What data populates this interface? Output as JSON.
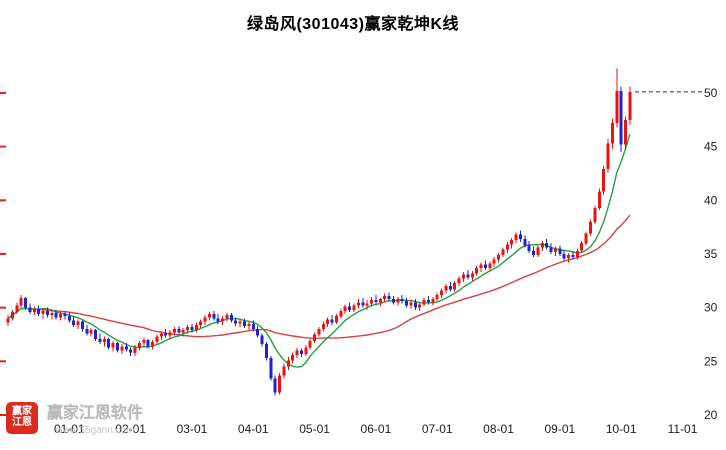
{
  "title": "绿岛风(301043)赢家乾坤K线",
  "watermark": {
    "logo_line1": "赢家",
    "logo_line2": "江恩",
    "name": "赢家江恩软件",
    "url": "www.55gann.com"
  },
  "colors": {
    "up": "#ee1111",
    "down": "#2222cc",
    "ma_fast": "#22a045",
    "ma_slow": "#d84040",
    "dashed": "#333333",
    "axis_text": "#222222",
    "left_tick": "#dd2222",
    "logo_bg": "#d92b1f"
  },
  "chart_data": {
    "type": "candlestick",
    "title": "绿岛风(301043)赢家乾坤K线",
    "legend": [],
    "grid": false,
    "y_axis": {
      "position": "right",
      "min": 20,
      "max": 54,
      "ticks": [
        50,
        45,
        40,
        35,
        30,
        25,
        20
      ]
    },
    "x_axis": {
      "labels": [
        "01-01",
        "02-01",
        "03-01",
        "04-01",
        "05-01",
        "06-01",
        "07-01",
        "08-01",
        "09-01",
        "10-01",
        "11-01"
      ],
      "first_label_slot": 14,
      "slot_step": 14,
      "total_slots": 158
    },
    "ma_fast_window": 8,
    "ma_slow_window": 30,
    "dashed_line_price": 50.1,
    "candles": [
      [
        28.6,
        29.3,
        28.3,
        29.0
      ],
      [
        29.0,
        29.8,
        28.8,
        29.6
      ],
      [
        29.6,
        30.5,
        29.4,
        30.2
      ],
      [
        30.2,
        31.2,
        30.0,
        30.9
      ],
      [
        30.9,
        31.0,
        29.8,
        30.0
      ],
      [
        30.0,
        30.4,
        29.4,
        29.6
      ],
      [
        29.6,
        30.1,
        29.3,
        29.9
      ],
      [
        29.9,
        30.2,
        29.2,
        29.4
      ],
      [
        29.4,
        29.9,
        29.0,
        29.7
      ],
      [
        29.7,
        30.0,
        29.1,
        29.3
      ],
      [
        29.3,
        29.7,
        28.9,
        29.5
      ],
      [
        29.5,
        29.8,
        28.9,
        29.1
      ],
      [
        29.1,
        29.6,
        28.8,
        29.4
      ],
      [
        29.4,
        29.7,
        28.9,
        29.2
      ],
      [
        29.2,
        29.6,
        28.6,
        28.8
      ],
      [
        28.8,
        29.2,
        28.2,
        28.4
      ],
      [
        28.4,
        28.9,
        28.0,
        28.7
      ],
      [
        28.7,
        28.8,
        27.8,
        28.0
      ],
      [
        28.0,
        28.4,
        27.4,
        27.6
      ],
      [
        27.6,
        28.1,
        27.3,
        27.9
      ],
      [
        27.9,
        28.0,
        26.9,
        27.1
      ],
      [
        27.1,
        27.6,
        26.6,
        26.8
      ],
      [
        26.8,
        27.3,
        26.4,
        27.1
      ],
      [
        27.1,
        27.2,
        26.1,
        26.3
      ],
      [
        26.3,
        26.9,
        25.9,
        26.7
      ],
      [
        26.7,
        26.8,
        25.8,
        26.0
      ],
      [
        26.0,
        26.6,
        25.7,
        26.4
      ],
      [
        26.4,
        26.7,
        25.9,
        26.1
      ],
      [
        26.1,
        26.3,
        25.5,
        25.8
      ],
      [
        25.8,
        26.5,
        25.5,
        26.3
      ],
      [
        26.3,
        26.9,
        26.0,
        26.7
      ],
      [
        26.7,
        27.2,
        26.4,
        27.0
      ],
      [
        27.0,
        27.1,
        26.2,
        26.4
      ],
      [
        26.4,
        27.0,
        26.1,
        26.8
      ],
      [
        26.8,
        27.5,
        26.6,
        27.3
      ],
      [
        27.3,
        27.8,
        27.0,
        27.6
      ],
      [
        27.6,
        28.0,
        27.2,
        27.4
      ],
      [
        27.4,
        27.9,
        27.1,
        27.7
      ],
      [
        27.7,
        28.2,
        27.4,
        28.0
      ],
      [
        28.0,
        28.3,
        27.5,
        27.7
      ],
      [
        27.7,
        28.1,
        27.3,
        27.9
      ],
      [
        27.9,
        28.4,
        27.6,
        28.2
      ],
      [
        28.2,
        28.5,
        27.7,
        27.9
      ],
      [
        27.9,
        28.6,
        27.7,
        28.4
      ],
      [
        28.4,
        28.9,
        28.1,
        28.7
      ],
      [
        28.7,
        29.3,
        28.4,
        29.1
      ],
      [
        29.1,
        29.6,
        28.8,
        29.4
      ],
      [
        29.4,
        29.7,
        28.8,
        29.0
      ],
      [
        29.0,
        29.4,
        28.5,
        28.7
      ],
      [
        28.7,
        29.2,
        28.4,
        29.0
      ],
      [
        29.0,
        29.5,
        28.7,
        29.3
      ],
      [
        29.3,
        29.5,
        28.6,
        28.8
      ],
      [
        28.8,
        29.1,
        28.3,
        28.5
      ],
      [
        28.5,
        28.9,
        28.2,
        28.7
      ],
      [
        28.7,
        29.0,
        28.1,
        28.3
      ],
      [
        28.3,
        28.7,
        27.9,
        28.5
      ],
      [
        28.5,
        28.8,
        27.8,
        28.0
      ],
      [
        28.0,
        28.3,
        27.2,
        27.4
      ],
      [
        27.4,
        27.6,
        26.4,
        26.6
      ],
      [
        26.6,
        26.8,
        25.1,
        25.3
      ],
      [
        25.3,
        25.5,
        23.2,
        23.4
      ],
      [
        23.4,
        23.7,
        21.8,
        22.1
      ],
      [
        22.1,
        23.9,
        21.9,
        23.7
      ],
      [
        23.7,
        24.8,
        23.4,
        24.5
      ],
      [
        24.5,
        25.4,
        24.2,
        25.1
      ],
      [
        25.1,
        25.8,
        24.8,
        25.6
      ],
      [
        25.6,
        26.3,
        25.3,
        26.0
      ],
      [
        26.0,
        26.2,
        25.4,
        25.7
      ],
      [
        25.7,
        26.5,
        25.5,
        26.3
      ],
      [
        26.3,
        27.1,
        26.1,
        26.9
      ],
      [
        26.9,
        27.7,
        26.7,
        27.5
      ],
      [
        27.5,
        28.2,
        27.3,
        28.0
      ],
      [
        28.0,
        28.7,
        27.8,
        28.5
      ],
      [
        28.5,
        29.1,
        28.2,
        28.9
      ],
      [
        28.9,
        29.3,
        28.4,
        28.6
      ],
      [
        28.6,
        29.4,
        28.5,
        29.2
      ],
      [
        29.2,
        29.9,
        29.0,
        29.7
      ],
      [
        29.7,
        30.3,
        29.4,
        30.1
      ],
      [
        30.1,
        30.5,
        29.6,
        29.8
      ],
      [
        29.8,
        30.4,
        29.6,
        30.2
      ],
      [
        30.2,
        30.8,
        29.9,
        30.5
      ],
      [
        30.5,
        30.9,
        30.0,
        30.2
      ],
      [
        30.2,
        30.7,
        29.8,
        30.4
      ],
      [
        30.4,
        31.0,
        30.1,
        30.7
      ],
      [
        30.7,
        31.2,
        30.3,
        30.5
      ],
      [
        30.5,
        30.9,
        30.1,
        30.8
      ],
      [
        30.8,
        31.3,
        30.5,
        31.1
      ],
      [
        31.1,
        31.4,
        30.6,
        30.8
      ],
      [
        30.8,
        31.1,
        30.3,
        30.5
      ],
      [
        30.5,
        31.0,
        30.2,
        30.8
      ],
      [
        30.8,
        31.2,
        30.4,
        30.6
      ],
      [
        30.6,
        30.9,
        30.0,
        30.2
      ],
      [
        30.2,
        30.7,
        29.9,
        30.5
      ],
      [
        30.5,
        30.8,
        29.8,
        30.0
      ],
      [
        30.0,
        30.5,
        29.7,
        30.3
      ],
      [
        30.3,
        30.9,
        30.1,
        30.7
      ],
      [
        30.7,
        31.1,
        30.3,
        30.5
      ],
      [
        30.5,
        31.0,
        30.2,
        30.8
      ],
      [
        30.8,
        31.4,
        30.6,
        31.2
      ],
      [
        31.2,
        31.8,
        30.9,
        31.6
      ],
      [
        31.6,
        32.2,
        31.3,
        32.0
      ],
      [
        32.0,
        32.4,
        31.5,
        31.7
      ],
      [
        31.7,
        32.5,
        31.5,
        32.3
      ],
      [
        32.3,
        32.9,
        32.0,
        32.7
      ],
      [
        32.7,
        33.3,
        32.4,
        33.1
      ],
      [
        33.1,
        33.5,
        32.6,
        32.8
      ],
      [
        32.8,
        33.4,
        32.5,
        33.2
      ],
      [
        33.2,
        33.9,
        33.0,
        33.7
      ],
      [
        33.7,
        34.2,
        33.3,
        34.0
      ],
      [
        34.0,
        34.4,
        33.5,
        33.7
      ],
      [
        33.7,
        34.3,
        33.4,
        34.1
      ],
      [
        34.1,
        34.7,
        33.8,
        34.5
      ],
      [
        34.5,
        35.1,
        34.2,
        34.9
      ],
      [
        34.9,
        35.6,
        34.7,
        35.4
      ],
      [
        35.4,
        36.1,
        35.1,
        35.9
      ],
      [
        35.9,
        36.5,
        35.5,
        36.3
      ],
      [
        36.3,
        37.0,
        36.0,
        36.8
      ],
      [
        36.8,
        37.2,
        36.1,
        36.4
      ],
      [
        36.4,
        36.7,
        35.6,
        35.8
      ],
      [
        35.8,
        36.2,
        35.1,
        35.3
      ],
      [
        35.3,
        35.7,
        34.7,
        34.9
      ],
      [
        34.9,
        35.8,
        34.7,
        35.6
      ],
      [
        35.6,
        36.2,
        35.3,
        36.0
      ],
      [
        36.0,
        36.4,
        35.4,
        35.6
      ],
      [
        35.6,
        36.0,
        35.0,
        35.2
      ],
      [
        35.2,
        35.7,
        34.8,
        35.5
      ],
      [
        35.5,
        35.8,
        34.8,
        35.0
      ],
      [
        35.0,
        35.4,
        34.4,
        34.6
      ],
      [
        34.6,
        35.1,
        34.2,
        34.9
      ],
      [
        34.9,
        35.3,
        34.5,
        34.7
      ],
      [
        34.7,
        35.5,
        34.5,
        35.3
      ],
      [
        35.3,
        36.2,
        35.1,
        36.0
      ],
      [
        36.0,
        37.1,
        35.8,
        36.9
      ],
      [
        36.9,
        38.2,
        36.7,
        38.0
      ],
      [
        38.0,
        39.5,
        37.8,
        39.3
      ],
      [
        39.3,
        41.1,
        39.1,
        40.8
      ],
      [
        40.8,
        43.2,
        40.5,
        42.9
      ],
      [
        42.9,
        45.7,
        42.6,
        45.3
      ],
      [
        45.3,
        47.6,
        44.8,
        47.2
      ],
      [
        47.2,
        52.3,
        46.8,
        50.2
      ],
      [
        50.2,
        50.6,
        44.5,
        45.2
      ],
      [
        45.2,
        47.8,
        44.7,
        47.5
      ],
      [
        47.5,
        50.6,
        47.0,
        50.1
      ]
    ]
  }
}
